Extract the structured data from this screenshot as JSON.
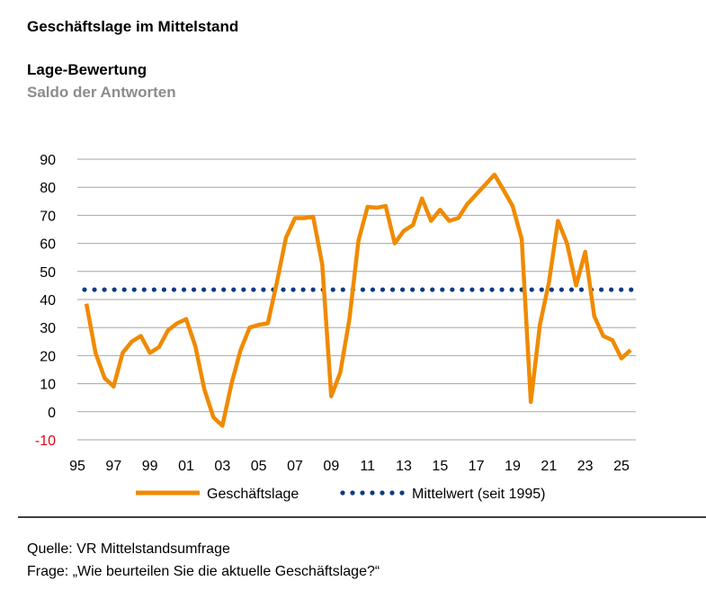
{
  "header": {
    "title": "Geschäftslage im Mittelstand",
    "subtitle": "Lage-Bewertung",
    "unit_label": "Saldo der Antworten"
  },
  "footer": {
    "source": "Quelle: VR Mittelstandsumfrage",
    "question": "Frage: „Wie beurteilen Sie die aktuelle Geschäftslage?“"
  },
  "colors": {
    "series": "#F08A00",
    "mean": "#0B3A82",
    "negative_tick": "#E30613",
    "grid": "#A6A6A6"
  },
  "chart_data": {
    "type": "line",
    "title": "Lage-Bewertung",
    "ylabel": "Saldo der Antworten",
    "xlabel": "",
    "ylim": [
      -10,
      90
    ],
    "xlim": [
      1995,
      2025.8
    ],
    "grid": true,
    "legend_position": "bottom",
    "y_ticks": [
      "90",
      "80",
      "70",
      "60",
      "50",
      "40",
      "30",
      "20",
      "10",
      "0",
      "-10"
    ],
    "y_tick_values": [
      90,
      80,
      70,
      60,
      50,
      40,
      30,
      20,
      10,
      0,
      -10
    ],
    "x_ticks": [
      "95",
      "97",
      "99",
      "01",
      "03",
      "05",
      "07",
      "09",
      "11",
      "13",
      "15",
      "17",
      "19",
      "21",
      "23",
      "25"
    ],
    "x_tick_values": [
      1995,
      1997,
      1999,
      2001,
      2003,
      2005,
      2007,
      2009,
      2011,
      2013,
      2015,
      2017,
      2019,
      2021,
      2023,
      2025
    ],
    "series": [
      {
        "name": "Geschäftslage",
        "x": [
          1995.5,
          1996,
          1996.5,
          1997,
          1997.5,
          1998,
          1998.5,
          1999,
          1999.5,
          2000,
          2000.5,
          2001,
          2001.5,
          2002,
          2002.5,
          2003,
          2003.5,
          2004,
          2004.5,
          2005,
          2005.5,
          2006,
          2006.5,
          2007,
          2007.5,
          2008,
          2008.5,
          2009,
          2009.5,
          2010,
          2010.5,
          2011,
          2011.5,
          2012,
          2012.5,
          2013,
          2013.5,
          2014,
          2014.5,
          2015,
          2015.5,
          2016,
          2016.5,
          2017,
          2017.5,
          2018,
          2018.5,
          2019,
          2019.5,
          2020,
          2020.5,
          2021,
          2021.5,
          2022,
          2022.5,
          2023,
          2023.5,
          2024,
          2024.5,
          2025,
          2025.5
        ],
        "values": [
          38.5,
          21,
          12,
          9,
          21,
          25,
          27,
          21,
          23,
          29,
          31.5,
          33,
          23.5,
          8,
          -2,
          -5,
          10,
          22,
          30,
          31,
          31.5,
          46,
          62,
          69,
          69,
          69.5,
          52.5,
          5.5,
          14,
          33,
          61,
          73,
          72.7,
          73.3,
          60,
          64.5,
          66.5,
          76,
          68,
          72,
          68,
          69,
          74,
          77.5,
          81,
          84.5,
          79,
          73.3,
          61.5,
          3.5,
          31,
          46,
          68,
          60,
          45,
          57,
          34,
          27,
          25.5,
          19,
          22
        ]
      },
      {
        "name": "Mittelwert (seit 1995)",
        "value": 43.5
      }
    ]
  }
}
